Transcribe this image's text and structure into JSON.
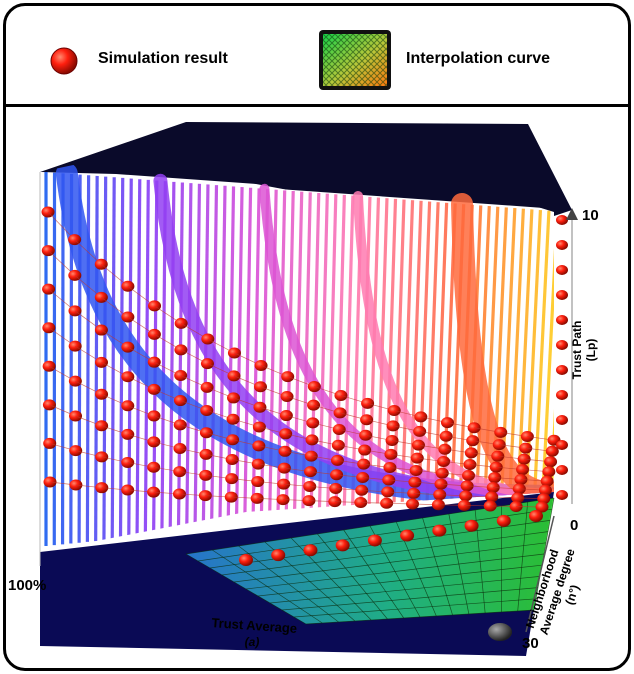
{
  "legend": {
    "simulation_label": "Simulation result",
    "interpolation_label": "Interpolation curve",
    "colors": {
      "marker": "#e8200c",
      "mesh_green": "#2fd22f"
    }
  },
  "chart_data": {
    "type": "surface3d",
    "series": [
      {
        "name": "Simulation result",
        "marker": "sphere",
        "color": "#e8200c"
      },
      {
        "name": "Interpolation curve",
        "style": "mesh-surface"
      }
    ],
    "z_axis": {
      "label_line1": "Trust Path",
      "label_line2": "(Lp)",
      "tick_max": "10"
    },
    "depth_axis": {
      "label_line1": "Neighborhood",
      "label_line2": "Average degree",
      "label_line3": "(n°)",
      "tick_min": "0",
      "tick_max": "30"
    },
    "x_axis": {
      "label_line1": "Trust Average",
      "label_line2": "(a)",
      "tick_label": "100%"
    },
    "zlim": [
      0,
      10
    ],
    "depth_range": [
      0,
      30
    ],
    "n_columns": 20,
    "n_rows": 8,
    "surface_colors": [
      "#1a5cf0",
      "#8a3cf5",
      "#d84fd8",
      "#ff7ab0",
      "#ff6a3c",
      "#ffd21e"
    ],
    "background_color": "#0a0a55"
  }
}
